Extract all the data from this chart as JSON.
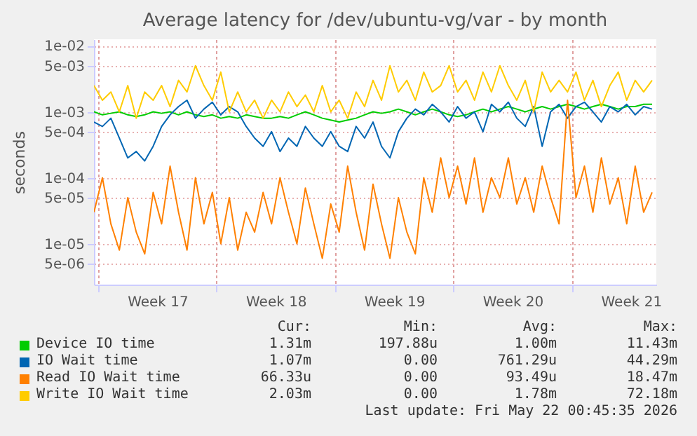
{
  "chart_data": {
    "type": "line",
    "title": "Average latency for /dev/ubuntu-vg/var - by month",
    "ylabel": "seconds",
    "x": [
      "2026-04-19T18:00",
      "2026-04-20T06:00",
      "2026-04-20T18:00",
      "2026-04-21T06:00",
      "2026-04-21T18:00",
      "2026-04-22T06:00",
      "2026-04-22T18:00",
      "2026-04-23T06:00",
      "2026-04-23T18:00",
      "2026-04-24T06:00",
      "2026-04-24T18:00",
      "2026-04-25T06:00",
      "2026-04-25T18:00",
      "2026-04-26T06:00",
      "2026-04-26T18:00",
      "2026-04-27T06:00",
      "2026-04-27T18:00",
      "2026-04-28T06:00",
      "2026-04-28T18:00",
      "2026-04-29T06:00",
      "2026-04-29T18:00",
      "2026-04-30T06:00",
      "2026-04-30T18:00",
      "2026-05-01T06:00",
      "2026-05-01T18:00",
      "2026-05-02T06:00",
      "2026-05-02T18:00",
      "2026-05-03T06:00",
      "2026-05-03T18:00",
      "2026-05-04T06:00",
      "2026-05-04T18:00",
      "2026-05-05T06:00",
      "2026-05-05T18:00",
      "2026-05-06T06:00",
      "2026-05-06T18:00",
      "2026-05-07T06:00",
      "2026-05-07T18:00",
      "2026-05-08T06:00",
      "2026-05-08T18:00",
      "2026-05-09T06:00",
      "2026-05-09T18:00",
      "2026-05-10T06:00",
      "2026-05-10T18:00",
      "2026-05-11T06:00",
      "2026-05-11T18:00",
      "2026-05-12T06:00",
      "2026-05-12T18:00",
      "2026-05-13T06:00",
      "2026-05-13T18:00",
      "2026-05-14T06:00",
      "2026-05-14T18:00",
      "2026-05-15T06:00",
      "2026-05-15T18:00",
      "2026-05-16T06:00",
      "2026-05-16T18:00",
      "2026-05-17T06:00",
      "2026-05-17T18:00",
      "2026-05-18T06:00",
      "2026-05-18T18:00",
      "2026-05-19T06:00",
      "2026-05-19T18:00",
      "2026-05-20T06:00",
      "2026-05-20T18:00",
      "2026-05-21T06:00",
      "2026-05-21T18:00",
      "2026-05-22T06:00",
      "2026-05-22T18:00"
    ],
    "series": [
      {
        "name": "Device IO time",
        "color": "#00cc00",
        "values": [
          0.001,
          0.0009,
          0.00095,
          0.001,
          0.0009,
          0.00085,
          0.0009,
          0.001,
          0.00095,
          0.001,
          0.0009,
          0.001,
          0.0009,
          0.00085,
          0.0009,
          0.0008,
          0.00085,
          0.0008,
          0.0009,
          0.00085,
          0.0008,
          0.0008,
          0.00085,
          0.0008,
          0.0009,
          0.001,
          0.0009,
          0.0008,
          0.00075,
          0.0007,
          0.00075,
          0.0008,
          0.0009,
          0.001,
          0.00095,
          0.001,
          0.0011,
          0.001,
          0.0009,
          0.001,
          0.0011,
          0.001,
          0.0009,
          0.00085,
          0.0009,
          0.001,
          0.0011,
          0.001,
          0.0011,
          0.0012,
          0.0011,
          0.001,
          0.0011,
          0.0012,
          0.0011,
          0.0012,
          0.0013,
          0.0012,
          0.0011,
          0.0012,
          0.0013,
          0.0012,
          0.0011,
          0.0012,
          0.0012,
          0.0013,
          0.0013
        ]
      },
      {
        "name": "IO Wait time",
        "color": "#0066b3",
        "values": [
          0.0007,
          0.0006,
          0.0008,
          0.0004,
          0.0002,
          0.00025,
          0.00018,
          0.0003,
          0.0006,
          0.0009,
          0.0012,
          0.0015,
          0.0008,
          0.0011,
          0.0014,
          0.0009,
          0.0012,
          0.001,
          0.0006,
          0.0004,
          0.0003,
          0.0005,
          0.00025,
          0.0004,
          0.0003,
          0.0006,
          0.0004,
          0.0003,
          0.0005,
          0.0003,
          0.00025,
          0.0006,
          0.0004,
          0.0007,
          0.0003,
          0.0002,
          0.0005,
          0.0008,
          0.0011,
          0.0009,
          0.0013,
          0.001,
          0.0007,
          0.0012,
          0.0008,
          0.001,
          0.0005,
          0.0013,
          0.001,
          0.0014,
          0.0008,
          0.0006,
          0.0012,
          0.0003,
          0.001,
          0.0013,
          0.0008,
          0.0012,
          0.0014,
          0.001,
          0.0007,
          0.0012,
          0.001,
          0.0013,
          0.0009,
          0.0012,
          0.0011
        ]
      },
      {
        "name": "Read IO Wait time",
        "color": "#ff8000",
        "values": [
          3e-05,
          0.0001,
          2e-05,
          8e-06,
          5e-05,
          1.5e-05,
          7e-06,
          6e-05,
          2e-05,
          0.00015,
          3e-05,
          8e-06,
          0.0001,
          2e-05,
          6e-05,
          1e-05,
          5e-05,
          8e-06,
          3e-05,
          1.5e-05,
          6e-05,
          2e-05,
          0.0001,
          3e-05,
          1e-05,
          7e-05,
          2e-05,
          6e-06,
          4e-05,
          1.5e-05,
          0.00015,
          3e-05,
          8e-06,
          8e-05,
          2e-05,
          6e-06,
          5e-05,
          1.5e-05,
          7e-06,
          0.0001,
          3e-05,
          0.0002,
          5e-05,
          0.00015,
          4e-05,
          0.0002,
          3e-05,
          0.0001,
          5e-05,
          0.0002,
          4e-05,
          0.0001,
          3e-05,
          0.00015,
          5e-05,
          2e-05,
          0.0015,
          5e-05,
          0.00015,
          3e-05,
          0.0002,
          4e-05,
          0.0001,
          2e-05,
          0.00015,
          3e-05,
          6e-05
        ]
      },
      {
        "name": "Write IO Wait time",
        "color": "#ffcc00",
        "values": [
          0.0025,
          0.0015,
          0.002,
          0.001,
          0.0025,
          0.0008,
          0.002,
          0.0015,
          0.0025,
          0.0012,
          0.003,
          0.002,
          0.005,
          0.0025,
          0.0015,
          0.004,
          0.001,
          0.002,
          0.001,
          0.0015,
          0.0008,
          0.0015,
          0.001,
          0.002,
          0.0012,
          0.0018,
          0.001,
          0.0025,
          0.001,
          0.0015,
          0.0008,
          0.002,
          0.0012,
          0.003,
          0.0015,
          0.005,
          0.002,
          0.003,
          0.0015,
          0.004,
          0.002,
          0.0025,
          0.005,
          0.002,
          0.003,
          0.0015,
          0.004,
          0.002,
          0.005,
          0.0025,
          0.0015,
          0.003,
          0.001,
          0.004,
          0.002,
          0.003,
          0.002,
          0.004,
          0.0015,
          0.003,
          0.0012,
          0.0025,
          0.004,
          0.0015,
          0.003,
          0.002,
          0.003
        ]
      }
    ],
    "xlim": [
      "2026-04-19T18:00",
      "2026-05-23T00:00"
    ],
    "xticks": [
      {
        "value": "2026-04-20",
        "label": null
      },
      {
        "value": "2026-04-23T12:00",
        "label": "Week 17"
      },
      {
        "value": "2026-04-27",
        "label": null
      },
      {
        "value": "2026-04-30T12:00",
        "label": "Week 18"
      },
      {
        "value": "2026-05-04",
        "label": null
      },
      {
        "value": "2026-05-07T12:00",
        "label": "Week 19"
      },
      {
        "value": "2026-05-11",
        "label": null
      },
      {
        "value": "2026-05-14T12:00",
        "label": "Week 20"
      },
      {
        "value": "2026-05-18",
        "label": null
      },
      {
        "value": "2026-05-21T12:00",
        "label": "Week 21"
      }
    ],
    "ylim": [
      2.4e-06,
      0.0126
    ],
    "yticks": [
      {
        "value": 5e-06,
        "label": "5e-06"
      },
      {
        "value": 1e-05,
        "label": "1e-05"
      },
      {
        "value": 5e-05,
        "label": "5e-05"
      },
      {
        "value": 0.0001,
        "label": "1e-04"
      },
      {
        "value": 0.0005,
        "label": "5e-04"
      },
      {
        "value": 0.001,
        "label": "1e-03"
      },
      {
        "value": 0.005,
        "label": "5e-03"
      },
      {
        "value": 0.01,
        "label": "1e-02"
      }
    ],
    "log": true,
    "grid": true,
    "legend": "bottom",
    "annotations": [
      "Cur:",
      "Min:",
      "Avg:",
      "Max:",
      "1.31m",
      "197.88u",
      "1.00m",
      "11.43m",
      "1.07m",
      "0.00",
      "761.29u",
      "44.29m",
      "66.33u",
      "0.00",
      "93.49u",
      "18.47m",
      "2.03m",
      "0.00",
      "1.78m",
      "72.18m",
      "Last update: Fri May 22 00:45:35 2026"
    ]
  }
}
